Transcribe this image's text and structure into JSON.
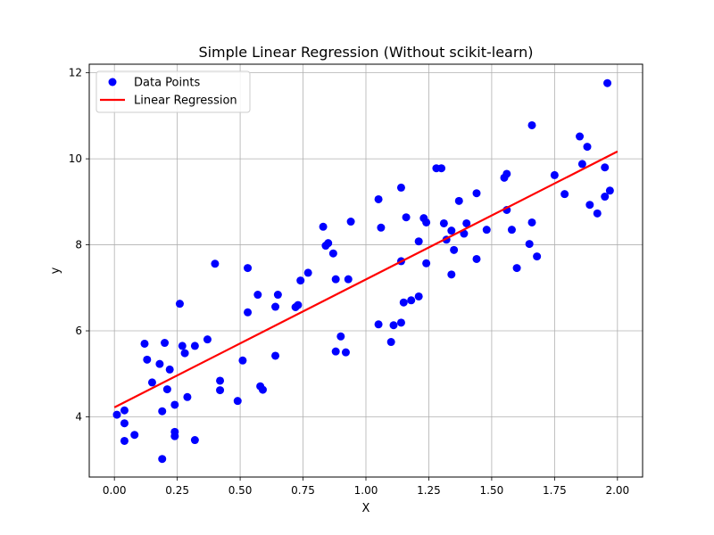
{
  "chart_data": {
    "type": "scatter",
    "title": "Simple Linear Regression (Without scikit-learn)",
    "xlabel": "X",
    "ylabel": "y",
    "xlim": [
      -0.1,
      2.1
    ],
    "ylim": [
      2.6,
      12.2
    ],
    "xticks": [
      0.0,
      0.25,
      0.5,
      0.75,
      1.0,
      1.25,
      1.5,
      1.75,
      2.0
    ],
    "xtick_labels": [
      "0.00",
      "0.25",
      "0.50",
      "0.75",
      "1.00",
      "1.25",
      "1.50",
      "1.75",
      "2.00"
    ],
    "yticks": [
      4,
      6,
      8,
      10,
      12
    ],
    "ytick_labels": [
      "4",
      "6",
      "8",
      "10",
      "12"
    ],
    "grid": true,
    "legend_position": "top-left",
    "series": [
      {
        "name": "Data Points",
        "kind": "scatter",
        "color": "#0000ff",
        "points": [
          [
            0.01,
            4.05
          ],
          [
            0.04,
            3.85
          ],
          [
            0.04,
            4.15
          ],
          [
            0.04,
            3.44
          ],
          [
            0.08,
            3.58
          ],
          [
            0.12,
            5.7
          ],
          [
            0.13,
            5.33
          ],
          [
            0.15,
            4.8
          ],
          [
            0.18,
            5.23
          ],
          [
            0.19,
            3.02
          ],
          [
            0.19,
            4.13
          ],
          [
            0.2,
            5.72
          ],
          [
            0.21,
            4.64
          ],
          [
            0.22,
            5.1
          ],
          [
            0.24,
            4.28
          ],
          [
            0.24,
            3.55
          ],
          [
            0.24,
            3.65
          ],
          [
            0.26,
            6.63
          ],
          [
            0.27,
            5.65
          ],
          [
            0.28,
            5.48
          ],
          [
            0.29,
            4.46
          ],
          [
            0.32,
            5.65
          ],
          [
            0.32,
            3.46
          ],
          [
            0.37,
            5.8
          ],
          [
            0.4,
            7.56
          ],
          [
            0.42,
            4.62
          ],
          [
            0.42,
            4.84
          ],
          [
            0.49,
            4.37
          ],
          [
            0.51,
            5.31
          ],
          [
            0.53,
            7.46
          ],
          [
            0.53,
            6.43
          ],
          [
            0.57,
            6.84
          ],
          [
            0.58,
            4.71
          ],
          [
            0.59,
            4.63
          ],
          [
            0.64,
            5.42
          ],
          [
            0.64,
            6.56
          ],
          [
            0.65,
            6.84
          ],
          [
            0.72,
            6.55
          ],
          [
            0.73,
            6.6
          ],
          [
            0.74,
            7.17
          ],
          [
            0.77,
            7.35
          ],
          [
            0.83,
            8.42
          ],
          [
            0.84,
            7.98
          ],
          [
            0.85,
            8.04
          ],
          [
            0.87,
            7.8
          ],
          [
            0.88,
            5.52
          ],
          [
            0.88,
            7.2
          ],
          [
            0.9,
            5.87
          ],
          [
            0.92,
            5.5
          ],
          [
            0.93,
            7.2
          ],
          [
            0.94,
            8.54
          ],
          [
            1.05,
            9.06
          ],
          [
            1.05,
            6.15
          ],
          [
            1.06,
            8.4
          ],
          [
            1.1,
            5.74
          ],
          [
            1.11,
            6.13
          ],
          [
            1.14,
            6.19
          ],
          [
            1.14,
            7.62
          ],
          [
            1.14,
            9.33
          ],
          [
            1.15,
            6.66
          ],
          [
            1.16,
            8.64
          ],
          [
            1.18,
            6.71
          ],
          [
            1.21,
            6.8
          ],
          [
            1.21,
            8.08
          ],
          [
            1.23,
            8.62
          ],
          [
            1.24,
            8.52
          ],
          [
            1.24,
            7.57
          ],
          [
            1.28,
            9.78
          ],
          [
            1.3,
            9.78
          ],
          [
            1.31,
            8.5
          ],
          [
            1.32,
            8.12
          ],
          [
            1.34,
            8.33
          ],
          [
            1.34,
            7.31
          ],
          [
            1.35,
            7.88
          ],
          [
            1.37,
            9.02
          ],
          [
            1.39,
            8.26
          ],
          [
            1.4,
            8.5
          ],
          [
            1.44,
            9.2
          ],
          [
            1.44,
            7.67
          ],
          [
            1.48,
            8.35
          ],
          [
            1.55,
            9.56
          ],
          [
            1.56,
            9.65
          ],
          [
            1.56,
            8.81
          ],
          [
            1.58,
            8.35
          ],
          [
            1.6,
            7.46
          ],
          [
            1.65,
            8.02
          ],
          [
            1.66,
            8.52
          ],
          [
            1.66,
            10.78
          ],
          [
            1.68,
            7.73
          ],
          [
            1.75,
            9.62
          ],
          [
            1.79,
            9.18
          ],
          [
            1.85,
            10.52
          ],
          [
            1.86,
            9.88
          ],
          [
            1.88,
            10.28
          ],
          [
            1.89,
            8.93
          ],
          [
            1.92,
            8.73
          ],
          [
            1.95,
            9.12
          ],
          [
            1.95,
            9.8
          ],
          [
            1.96,
            11.76
          ],
          [
            1.97,
            9.26
          ]
        ]
      },
      {
        "name": "Linear Regression",
        "kind": "line",
        "color": "#ff0000",
        "points": [
          [
            0.0,
            4.22
          ],
          [
            2.0,
            10.17
          ]
        ]
      }
    ]
  }
}
